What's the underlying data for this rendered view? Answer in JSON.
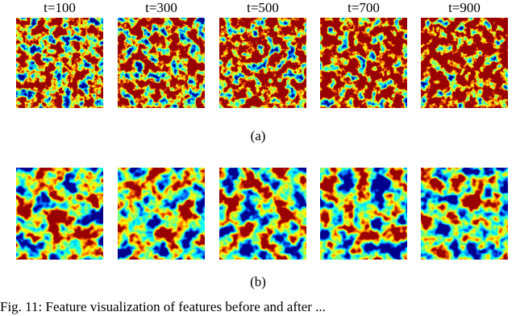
{
  "figure": {
    "columns": [
      "t=100",
      "t=300",
      "t=500",
      "t=700",
      "t=900"
    ],
    "row_labels": [
      "(a)",
      "(b)"
    ],
    "caption": "Fig. 11: Feature visualization of features before and after ..."
  }
}
